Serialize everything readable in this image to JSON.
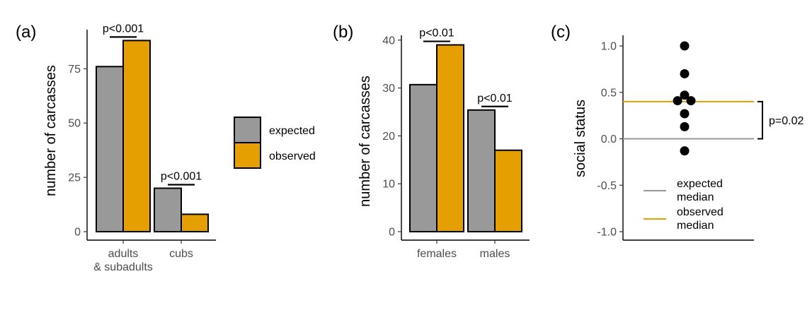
{
  "colors": {
    "expected": "#999999",
    "observed": "#E69F00",
    "axis": "#000000",
    "tick_text": "#4d4d4d"
  },
  "chart_data": [
    {
      "panel": "(a)",
      "type": "bar",
      "ylabel": "number of carcasses",
      "ylim": [
        0,
        93
      ],
      "yticks": [
        0,
        25,
        50,
        75
      ],
      "ytick_labels": [
        "0",
        "25",
        "50",
        "75"
      ],
      "categories": [
        "adults",
        "cubs"
      ],
      "category_labels": [
        [
          "adults",
          "& subadults"
        ],
        [
          "cubs"
        ]
      ],
      "series": [
        {
          "name": "expected",
          "values": [
            76,
            20
          ]
        },
        {
          "name": "observed",
          "values": [
            88,
            8
          ]
        }
      ],
      "annotations": [
        {
          "text": "p<0.001",
          "category": 0
        },
        {
          "text": "p<0.001",
          "category": 1
        }
      ]
    },
    {
      "panel": "(b)",
      "type": "bar",
      "ylabel": "number of carcasses",
      "ylim": [
        0,
        41
      ],
      "yticks": [
        0,
        10,
        20,
        30,
        40
      ],
      "ytick_labels": [
        "0",
        "10",
        "20",
        "30",
        "40"
      ],
      "categories": [
        "females",
        "males"
      ],
      "category_labels": [
        [
          "females"
        ],
        [
          "males"
        ]
      ],
      "series": [
        {
          "name": "expected",
          "values": [
            30.7,
            25.4
          ]
        },
        {
          "name": "observed",
          "values": [
            39,
            17
          ]
        }
      ],
      "annotations": [
        {
          "text": "p<0.01",
          "category": 0
        },
        {
          "text": "p<0.01",
          "category": 1
        }
      ]
    },
    {
      "panel": "(c)",
      "type": "scatter",
      "ylabel": "social status",
      "ylim": [
        -1.05,
        1.05
      ],
      "yticks": [
        -1.0,
        -0.5,
        0.0,
        0.5,
        1.0
      ],
      "ytick_labels": [
        "-1.0",
        "-0.5",
        "0.0",
        "0.5",
        "1.0"
      ],
      "points": [
        {
          "x": 0,
          "y": 1.0
        },
        {
          "x": 0,
          "y": 0.7
        },
        {
          "x": 0,
          "y": 0.47
        },
        {
          "x": -0.55,
          "y": 0.41
        },
        {
          "x": 0.5,
          "y": 0.41
        },
        {
          "x": 0,
          "y": 0.27
        },
        {
          "x": 0,
          "y": 0.13
        },
        {
          "x": 0,
          "y": -0.13
        }
      ],
      "median_lines": [
        {
          "name": "expected median",
          "value": 0.0,
          "label_lines": [
            "expected",
            "median"
          ]
        },
        {
          "name": "observed median",
          "value": 0.4,
          "label_lines": [
            "observed",
            "median"
          ]
        }
      ],
      "annotations": [
        {
          "text": "p=0.02"
        }
      ]
    }
  ],
  "legend_bars": [
    {
      "label": "expected"
    },
    {
      "label": "observed"
    }
  ]
}
